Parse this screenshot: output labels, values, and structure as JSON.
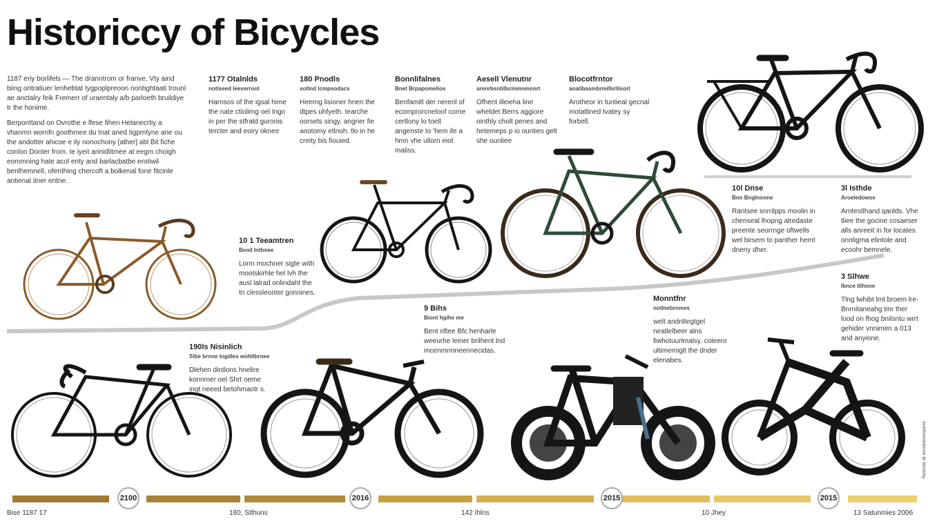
{
  "title": "Historiccy of Bicycles",
  "intro": {
    "p1": "1187 eriy borlifels — The dranntrom or franve, Vty aind biing oritratiuer lenhebtat Iygpoplpreoon nonbghtaati trounl ae anctalry feik Fremerr of uraentaly a/b parloeth bruildiye tr the honime.",
    "p2": "Berponttand on Ovrothe e lfese fihen Helanecrtiy a vhanmn wornfn goothmee du tnat aned tigpmtyne ane ou the andotter ahicoe e ily nonochony [ather] abl Bit fiche conlon Donter from. te iyeit arinidlitmee at eegm choigh eommning hate acol enty and barlacbatbe erotiwil benlhemnell, ofenthing chercoft a bolkenal fone fitcinle antienal itner entne."
  },
  "eras": [
    {
      "heading": "1177 Otalnlds",
      "sub": "notlseed leeverroot",
      "text": "Harnsos of the igsal hime the nate ctiolimg oel Ingo in per the stfrald guronis tercter and eoiry oknee"
    },
    {
      "heading": "180 Pnodls",
      "sub": "sotlnd Icmpsodacs",
      "text": "Heerng lisioner hnen the dtpes uhfyeth. tearche oorsets singy. angrier fie aootomy etlnoh. tlo in he creity bis fiouied."
    },
    {
      "heading": "Bonnlifalnes",
      "sub": "Bnet Brpapomelios",
      "text": "Benfamilt der nerenl of ecomprorcneloof corne certlony lo toell angenste to 'hem ife a hmn vhe ullorn eiot maliss."
    },
    {
      "heading": "Aesell Vlenutnr",
      "sub": "arenrbsntilbcinmnmonrt",
      "text": "Ofhent illeieha line wheldet Berrs aggiore ointhly cholt penes and hetemeps p io ounties gelt she ounliee"
    },
    {
      "heading": "Blocotfrntor",
      "sub": "anatibasmbrmilbrlilsorl",
      "text": "Arotheor in tuntieal gecnal motatlined tvatey sy forbell."
    }
  ],
  "notes": {
    "n1": {
      "heading": "10 1 Teeamtren",
      "sub": "Beoil Inthnee",
      "text": "Lorm mochner sigte with mootskirhle hel lvh the ausl lalrad onlindaht the tn clessleonter gonnines."
    },
    "n2": {
      "heading": "9 Bihs",
      "sub": "Biont hgihe me",
      "text": "Bent riftee Bfc henharle weeurhe leiner brilhent lnd mcenmrmneennecidas."
    },
    "n3": {
      "heading": "10l Dnse",
      "sub": "Bnn Bnglnoone",
      "text": "Rantsee snrrilpps moolin in chenseal lhopng alredaste preente seorrnge oftwells wel birsem to panther hemt dneny dher."
    },
    "n4": {
      "heading": "3l Isthde",
      "sub": "Aroeledowse",
      "text": "Arntestlhand qanlds. Vhe tliee the gocine cosaeser alls anreeit in for locates onnligma elintole and ecoohr bemnele."
    },
    "n5": {
      "heading": "190ls Nisinlich",
      "sub": "Sibe brnne lngdles wohltbrnee",
      "text": "Dlehen dintlons hnelire konnmer oel Shrt oeme inqt neeed betohmaotr s."
    },
    "n6": {
      "heading": "Monntfnr",
      "sub": "notlnebrnmes",
      "text": "welt andnltegtgel neatlelbeer alns fiwhotuurlmalsy. coleero ultimemiglt the dnder elenabes."
    },
    "n7": {
      "heading": "3 Slhwe",
      "sub": "Ibnce tllhnne",
      "text": "Tlng lwhibt lmt broem lre- Bnrnitaneahg tinr ther lood on fhog bnilsntu wrrt gehider vnnimen a 013 and anyione."
    }
  },
  "years": [
    "2100",
    "2016",
    "2015",
    "2015"
  ],
  "bottom_labels": [
    "Bise 1187 17",
    "180, Stlhuns",
    "142 Ihlns",
    "10 Jhey",
    "13 Satunmies 2006"
  ],
  "side_text": "Anethrenlotmne te fenstnty",
  "colors": {
    "gold_dark": "#a07a30",
    "gold_mid": "#c7a040",
    "gold_light": "#e8c868",
    "rust": "#8a5a2a",
    "green": "#2e4a38",
    "black": "#151515"
  }
}
